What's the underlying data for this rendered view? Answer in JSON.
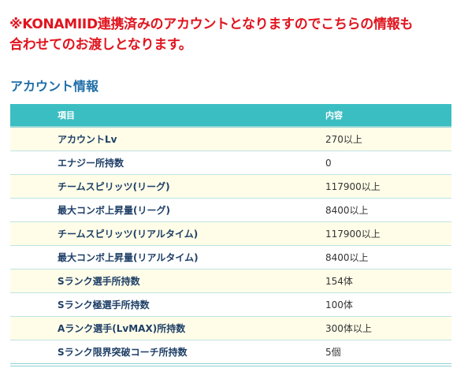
{
  "notice": {
    "line1": "※KONAMIID連携済みのアカウントとなりますのでこちらの情報も",
    "line2": "合わせてのお渡しとなります。"
  },
  "section": {
    "title": "アカウント情報"
  },
  "table": {
    "headers": [
      "項目",
      "内容"
    ],
    "rows": [
      [
        "アカウントLv",
        "270以上"
      ],
      [
        "エナジー所持数",
        "0"
      ],
      [
        "チームスピリッツ(リーグ)",
        "117900以上"
      ],
      [
        "最大コンボ上昇量(リーグ)",
        "8400以上"
      ],
      [
        "チームスピリッツ(リアルタイム)",
        "117900以上"
      ],
      [
        "最大コンボ上昇量(リアルタイム)",
        "8400以上"
      ],
      [
        "Sランク選手所持数",
        "154体"
      ],
      [
        "Sランク極選手所持数",
        "100体"
      ],
      [
        "Aランク選手(LvMAX)所持数",
        "300体以上"
      ],
      [
        "Sランク限界突破コーチ所持数",
        "5個"
      ]
    ]
  },
  "colors": {
    "notice": "#e0141e",
    "title": "#1f6ea8",
    "header_bg": "#3bbec2",
    "row_alt_bg": "#fffde8"
  }
}
